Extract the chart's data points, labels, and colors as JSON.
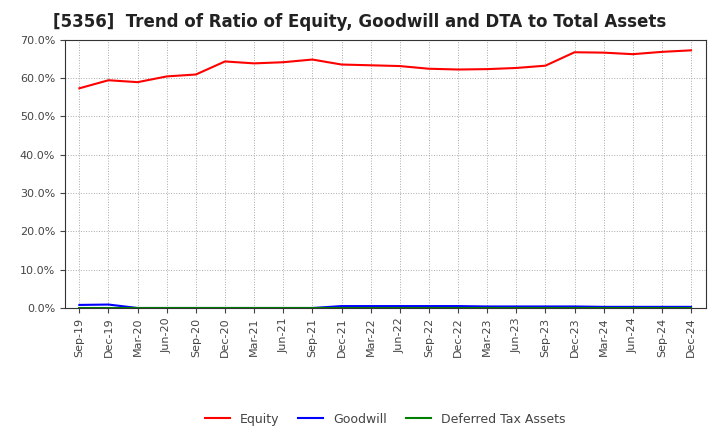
{
  "title": "[5356]  Trend of Ratio of Equity, Goodwill and DTA to Total Assets",
  "x_labels": [
    "Sep-19",
    "Dec-19",
    "Mar-20",
    "Jun-20",
    "Sep-20",
    "Dec-20",
    "Mar-21",
    "Jun-21",
    "Sep-21",
    "Dec-21",
    "Mar-22",
    "Jun-22",
    "Sep-22",
    "Dec-22",
    "Mar-23",
    "Jun-23",
    "Sep-23",
    "Dec-23",
    "Mar-24",
    "Jun-24",
    "Sep-24",
    "Dec-24"
  ],
  "equity": [
    0.573,
    0.594,
    0.589,
    0.604,
    0.609,
    0.643,
    0.638,
    0.641,
    0.648,
    0.635,
    0.633,
    0.631,
    0.624,
    0.622,
    0.623,
    0.626,
    0.632,
    0.667,
    0.666,
    0.662,
    0.668,
    0.672
  ],
  "goodwill": [
    0.008,
    0.009,
    0.0,
    0.0,
    0.0,
    0.0,
    0.0,
    0.0,
    0.0,
    0.005,
    0.005,
    0.005,
    0.005,
    0.005,
    0.004,
    0.004,
    0.004,
    0.004,
    0.003,
    0.003,
    0.003,
    0.003
  ],
  "dta": [
    0.0,
    0.0,
    0.0,
    0.0,
    0.0,
    0.0,
    0.0,
    0.0,
    0.0,
    0.0,
    0.0,
    0.0,
    0.0,
    0.0,
    0.0,
    0.0,
    0.0,
    0.0,
    0.0,
    0.0,
    0.0,
    0.0
  ],
  "equity_color": "#ff0000",
  "goodwill_color": "#0000ff",
  "dta_color": "#008000",
  "ylim": [
    0.0,
    0.7
  ],
  "yticks": [
    0.0,
    0.1,
    0.2,
    0.3,
    0.4,
    0.5,
    0.6,
    0.7
  ],
  "bg_color": "#ffffff",
  "grid_color": "#aaaaaa",
  "title_fontsize": 12,
  "title_color": "#222222",
  "axis_fontsize": 8,
  "legend_fontsize": 9,
  "tick_color": "#444444"
}
